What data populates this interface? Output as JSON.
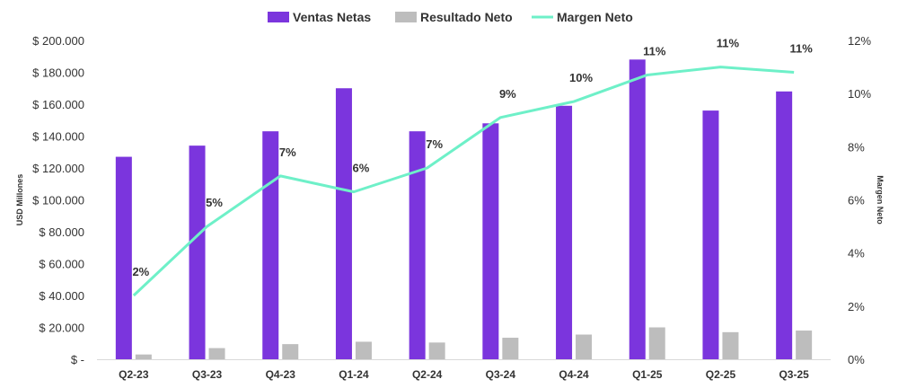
{
  "chart_data": {
    "type": "bar",
    "categories": [
      "Q2-23",
      "Q3-23",
      "Q4-23",
      "Q1-24",
      "Q2-24",
      "Q3-24",
      "Q4-24",
      "Q1-25",
      "Q2-25",
      "Q3-25"
    ],
    "series": [
      {
        "name": "Ventas Netas",
        "type": "bar",
        "axis": "left",
        "color": "#7B35DD",
        "values": [
          127000,
          134000,
          143000,
          170000,
          143000,
          148000,
          159000,
          188000,
          156000,
          168000
        ]
      },
      {
        "name": "Resultado Neto",
        "type": "bar",
        "axis": "left",
        "color": "#BDBDBD",
        "values": [
          3000,
          7000,
          9500,
          11000,
          10500,
          13500,
          15500,
          20000,
          17000,
          18000
        ]
      },
      {
        "name": "Margen Neto",
        "type": "line",
        "axis": "right",
        "color": "#6EF0C8",
        "values": [
          2.4,
          5.0,
          6.9,
          6.3,
          7.2,
          9.1,
          9.7,
          10.7,
          11.0,
          10.8
        ],
        "labels": [
          "2%",
          "5%",
          "7%",
          "6%",
          "7%",
          "9%",
          "10%",
          "11%",
          "11%",
          "11%"
        ]
      }
    ],
    "left_axis": {
      "label": "USD Millones",
      "min": 0,
      "max": 200000,
      "ticks": [
        "$ -",
        "$ 20.000",
        "$ 40.000",
        "$ 60.000",
        "$ 80.000",
        "$ 100.000",
        "$ 120.000",
        "$ 140.000",
        "$ 160.000",
        "$ 180.000",
        "$ 200.000"
      ]
    },
    "right_axis": {
      "label": "Margen Neto",
      "min": 0,
      "max": 12,
      "ticks": [
        "0%",
        "2%",
        "4%",
        "6%",
        "8%",
        "10%",
        "12%"
      ]
    },
    "legend_position": "top-center",
    "grid": false
  }
}
